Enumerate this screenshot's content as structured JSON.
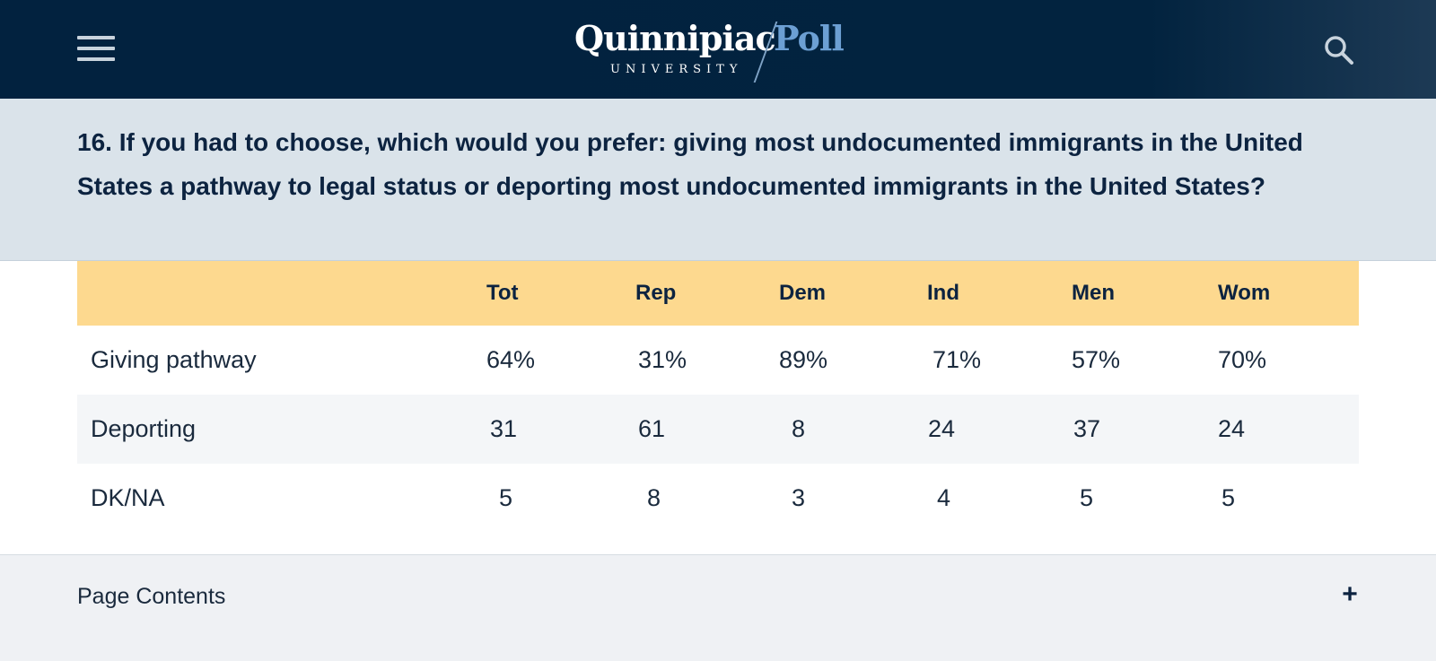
{
  "header": {
    "brand_name": "Quinnipiac",
    "brand_sub": "UNIVERSITY",
    "brand_product": "Poll",
    "menu_icon": "hamburger-menu-icon",
    "search_icon": "search-icon",
    "background_color": "#02233f"
  },
  "question": {
    "text": "16. If you had to choose, which would you prefer: giving most undocumented immigrants in the United States a pathway to legal status or deporting most undocumented immigrants in the United States?",
    "background_color": "#dae3ea"
  },
  "table": {
    "header_color": "#fdd98f",
    "columns": [
      "",
      "Tot",
      "Rep",
      "Dem",
      "Ind",
      "Men",
      "Wom"
    ],
    "rows": [
      {
        "label": "Giving pathway",
        "values": [
          "64%",
          "31%",
          "89%",
          "71%",
          "57%",
          "70%"
        ]
      },
      {
        "label": "Deporting",
        "values": [
          "31",
          "61",
          "8",
          "24",
          "37",
          "24"
        ]
      },
      {
        "label": "DK/NA",
        "values": [
          "5",
          "8",
          "3",
          "4",
          "5",
          "5"
        ]
      }
    ]
  },
  "footer": {
    "label": "Page Contents",
    "toggle": "+",
    "toggle_icon": "plus-icon"
  }
}
